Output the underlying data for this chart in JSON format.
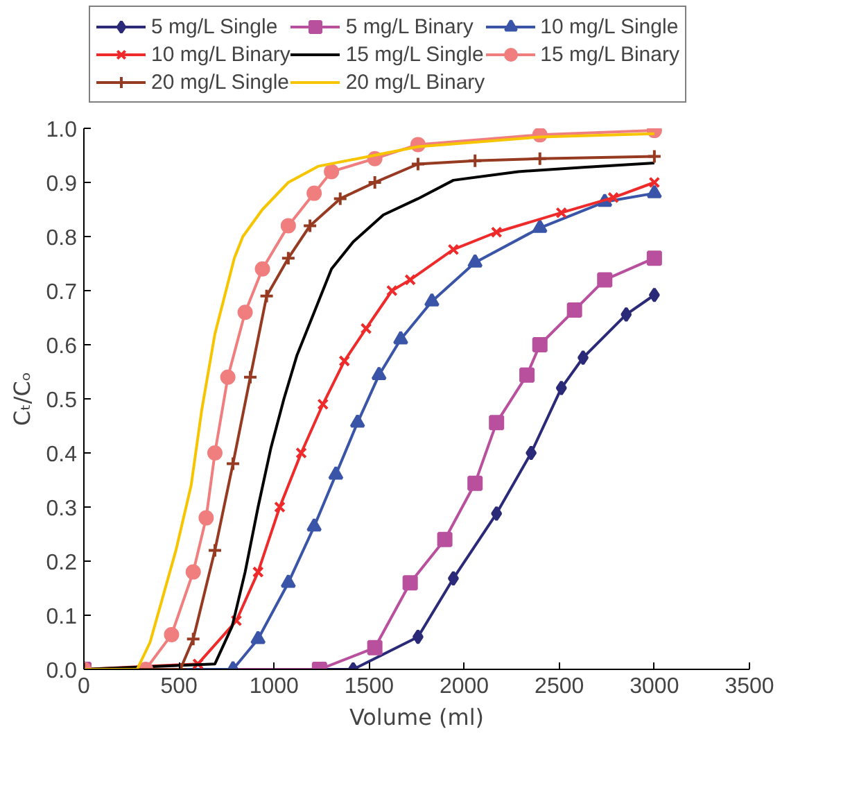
{
  "chart_data": {
    "type": "line",
    "xlabel": "Volume (ml)",
    "ylabel": "Cₜ/Cₒ",
    "xlim": [
      0,
      3500
    ],
    "xticks": [
      0,
      500,
      1000,
      1500,
      2000,
      2500,
      3000,
      3500
    ],
    "ylim": [
      0,
      1
    ],
    "yticks": [
      {
        "value": 0,
        "label": "0.0"
      },
      0.1,
      0.2,
      0.3,
      0.4,
      0.5,
      0.6,
      0.7,
      0.8,
      0.9,
      {
        "value": 1,
        "label": "1.0"
      }
    ],
    "grid": false,
    "legend": "top",
    "series": [
      {
        "name": "5 mg/L Single",
        "color": "#2b2a78",
        "marker": "diamond",
        "x": [
          0,
          1416,
          1757,
          1943,
          2170,
          2352,
          2511,
          2625,
          2852,
          3000
        ],
        "values": [
          0,
          0,
          0.06,
          0.168,
          0.288,
          0.4,
          0.52,
          0.576,
          0.656,
          0.692
        ]
      },
      {
        "name": "5 mg/L Binary",
        "color": "#b8509e",
        "marker": "square",
        "x": [
          0,
          1239,
          1530,
          1716,
          1898,
          2057,
          2170,
          2330,
          2398,
          2580,
          2739,
          3000
        ],
        "values": [
          0,
          0,
          0.04,
          0.16,
          0.24,
          0.344,
          0.456,
          0.544,
          0.6,
          0.664,
          0.72,
          0.76
        ]
      },
      {
        "name": "10 mg/L Single",
        "color": "#3a55a8",
        "marker": "triangle",
        "x": [
          0,
          784,
          916,
          1075,
          1211,
          1325,
          1439,
          1552,
          1666,
          1830,
          2057,
          2398,
          2739,
          3000
        ],
        "values": [
          0,
          0,
          0.056,
          0.16,
          0.264,
          0.36,
          0.456,
          0.544,
          0.61,
          0.68,
          0.752,
          0.816,
          0.864,
          0.88
        ]
      },
      {
        "name": "10 mg/L Binary",
        "color": "#ee2a2a",
        "marker": "x",
        "x": [
          0,
          600,
          802,
          916,
          1030,
          1143,
          1257,
          1370,
          1484,
          1620,
          1716,
          1943,
          2170,
          2511,
          2784,
          3000
        ],
        "values": [
          0,
          0.01,
          0.09,
          0.18,
          0.3,
          0.4,
          0.49,
          0.57,
          0.63,
          0.7,
          0.72,
          0.776,
          0.808,
          0.844,
          0.872,
          0.9
        ]
      },
      {
        "name": "15 mg/L Single",
        "color": "#000000",
        "marker": "none",
        "x": [
          0,
          689,
          780,
          848,
          916,
          984,
          1052,
          1120,
          1211,
          1302,
          1416,
          1575,
          1757,
          1943,
          2284,
          2625,
          3000
        ],
        "values": [
          0,
          0.01,
          0.08,
          0.18,
          0.3,
          0.41,
          0.5,
          0.58,
          0.66,
          0.74,
          0.79,
          0.84,
          0.87,
          0.904,
          0.92,
          0.928,
          0.936
        ]
      },
      {
        "name": "15 mg/L Binary",
        "color": "#f07e7e",
        "marker": "circle",
        "x": [
          0,
          325,
          461,
          575,
          643,
          689,
          757,
          848,
          939,
          1075,
          1211,
          1302,
          1530,
          1757,
          2398,
          3000
        ],
        "values": [
          0,
          0,
          0.064,
          0.18,
          0.28,
          0.4,
          0.54,
          0.66,
          0.74,
          0.82,
          0.88,
          0.92,
          0.944,
          0.97,
          0.988,
          0.996
        ]
      },
      {
        "name": "20 mg/L Single",
        "color": "#963a22",
        "marker": "cross",
        "x": [
          0,
          507,
          575,
          689,
          784,
          875,
          961,
          1075,
          1189,
          1348,
          1530,
          1757,
          2057,
          2398,
          3000
        ],
        "values": [
          0,
          0,
          0.056,
          0.22,
          0.38,
          0.54,
          0.69,
          0.76,
          0.82,
          0.87,
          0.9,
          0.934,
          0.94,
          0.944,
          0.948
        ]
      },
      {
        "name": "20 mg/L Binary",
        "color": "#f7c500",
        "marker": "none",
        "x": [
          0,
          280,
          348,
          484,
          564,
          620,
          689,
          791,
          836,
          939,
          1075,
          1234,
          1439,
          1757,
          2398,
          3000
        ],
        "values": [
          0,
          0,
          0.05,
          0.22,
          0.34,
          0.48,
          0.62,
          0.76,
          0.8,
          0.85,
          0.9,
          0.93,
          0.944,
          0.966,
          0.984,
          0.99
        ]
      }
    ]
  }
}
